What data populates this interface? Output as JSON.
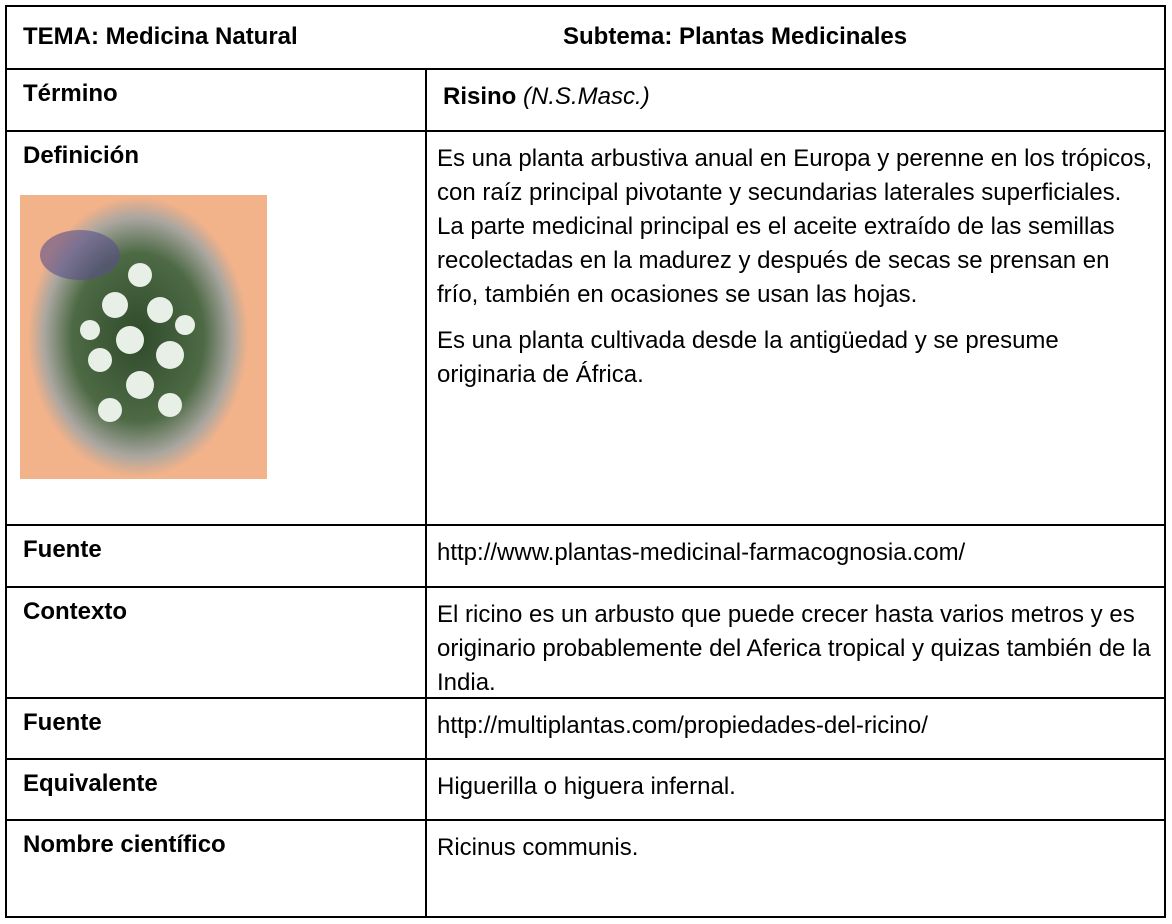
{
  "header": {
    "tema": "TEMA: Medicina Natural",
    "subtema": "Subtema: Plantas Medicinales"
  },
  "rows": [
    {
      "label": "Término",
      "term": "Risino",
      "grammar": "(N.S.Masc.)"
    },
    {
      "label": "Definición",
      "paragraphs": [
        "Es una planta arbustiva anual en Europa y perenne en los trópicos, con raíz principal pivotante y secundarias laterales superficiales. La parte medicinal principal es el aceite extraído de las semillas recolectadas en la madurez y después de secas se prensan en frío, también en ocasiones se usan las hojas.",
        "Es una planta cultivada desde la antigüedad y se presume originaria de África."
      ]
    },
    {
      "label": "Fuente",
      "text": "http://www.plantas-medicinal-farmacognosia.com/"
    },
    {
      "label": "Contexto",
      "text": "El ricino es un arbusto que puede crecer hasta varios metros y es originario probablemente del Aferica tropical y quizas también de la India."
    },
    {
      "label": "Fuente",
      "text": "http://multiplantas.com/propiedades-del-ricino/"
    },
    {
      "label": "Equivalente",
      "text": "Higuerilla o higuera infernal."
    },
    {
      "label": "Nombre científico",
      "text": "Ricinus communis."
    }
  ]
}
